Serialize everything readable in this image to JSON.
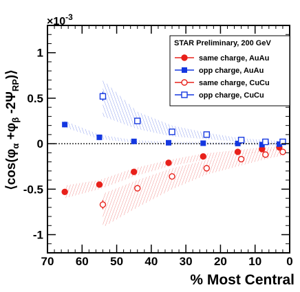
{
  "chart_data": {
    "type": "scatter",
    "multiplier_label": "×10",
    "multiplier_exponent": "-3",
    "ylabel_parts": {
      "open": "⟨cos(φ",
      "sub_a": "α",
      "plus": " +φ",
      "sub_b": "β",
      "minus": " -2Ψ",
      "sub_rp": "RP",
      "close": ")⟩"
    },
    "xlabel": "% Most Central",
    "xlim": [
      70,
      0
    ],
    "ylim": [
      -1.2,
      1.3
    ],
    "x_ticks": [
      70,
      60,
      50,
      40,
      30,
      20,
      10,
      0
    ],
    "x_tick_labels": [
      "70",
      "60",
      "50",
      "40",
      "30",
      "20",
      "10",
      "0"
    ],
    "y_ticks": [
      1,
      0.5,
      0,
      -0.5,
      -1
    ],
    "y_tick_labels": [
      "1",
      "0.5",
      "0",
      "-0.5",
      "-1"
    ],
    "zero_line": true,
    "legend_title": "STAR Preliminary,  200 GeV",
    "legend_position": "top-right",
    "series": [
      {
        "name": "same charge, AuAu",
        "color": "#e8201a",
        "marker": "filled-circle",
        "x": [
          65,
          55,
          45,
          35,
          25,
          15,
          8,
          3
        ],
        "y": [
          -0.53,
          -0.45,
          -0.31,
          -0.21,
          -0.14,
          -0.09,
          -0.06,
          -0.04
        ],
        "yerr": [
          0.03,
          0.02,
          0.02,
          0.015,
          0.012,
          0.01,
          0.01,
          0.01
        ]
      },
      {
        "name": "opp charge, AuAu",
        "color": "#1437e0",
        "marker": "filled-square",
        "x": [
          65,
          55,
          45,
          35,
          25,
          15,
          8,
          3
        ],
        "y": [
          0.21,
          0.07,
          0.025,
          0.01,
          0.005,
          0.002,
          -0.01,
          -0.005
        ],
        "yerr": [
          0.03,
          0.015,
          0.012,
          0.01,
          0.01,
          0.01,
          0.01,
          0.01
        ]
      },
      {
        "name": "same charge, CuCu",
        "color": "#e8201a",
        "marker": "open-circle",
        "x": [
          54,
          44,
          34,
          24,
          14,
          7,
          2
        ],
        "y": [
          -0.67,
          -0.49,
          -0.36,
          -0.27,
          -0.17,
          -0.12,
          -0.09
        ],
        "yerr": [
          0.05,
          0.03,
          0.02,
          0.02,
          0.015,
          0.015,
          0.015
        ]
      },
      {
        "name": "opp charge, CuCu",
        "color": "#1437e0",
        "marker": "open-square",
        "x": [
          54,
          44,
          34,
          24,
          14,
          7,
          2
        ],
        "y": [
          0.52,
          0.25,
          0.13,
          0.1,
          0.04,
          0.02,
          0.02
        ],
        "yerr": [
          0.05,
          0.03,
          0.02,
          0.02,
          0.015,
          0.015,
          0.015
        ]
      }
    ],
    "bands": [
      {
        "color": "#1437e0",
        "x": [
          54,
          44,
          34,
          24,
          14,
          7,
          2
        ],
        "lower": [
          0.3,
          0.16,
          0.08,
          0.05,
          0.02,
          0.0,
          -0.01
        ],
        "upper": [
          0.7,
          0.35,
          0.2,
          0.12,
          0.06,
          0.04,
          0.03
        ]
      },
      {
        "color": "#1437e0",
        "x": [
          65,
          55,
          45,
          35,
          25,
          15,
          8,
          3
        ],
        "lower": [
          0.18,
          0.05,
          0.01,
          0.0,
          -0.01,
          -0.01,
          -0.02,
          -0.02
        ],
        "upper": [
          0.25,
          0.1,
          0.04,
          0.02,
          0.02,
          0.01,
          0.01,
          0.01
        ]
      },
      {
        "color": "#e8201a",
        "x": [
          54,
          44,
          34,
          24,
          14,
          7,
          2
        ],
        "lower": [
          -0.92,
          -0.7,
          -0.5,
          -0.34,
          -0.24,
          -0.17,
          -0.13
        ],
        "upper": [
          -0.55,
          -0.4,
          -0.27,
          -0.18,
          -0.11,
          -0.07,
          -0.05
        ]
      },
      {
        "color": "#e8201a",
        "x": [
          65,
          55,
          45,
          35,
          25,
          15,
          8,
          3
        ],
        "lower": [
          -0.6,
          -0.5,
          -0.36,
          -0.25,
          -0.18,
          -0.12,
          -0.09,
          -0.07
        ],
        "upper": [
          -0.46,
          -0.4,
          -0.27,
          -0.18,
          -0.11,
          -0.07,
          -0.04,
          -0.03
        ]
      }
    ]
  }
}
